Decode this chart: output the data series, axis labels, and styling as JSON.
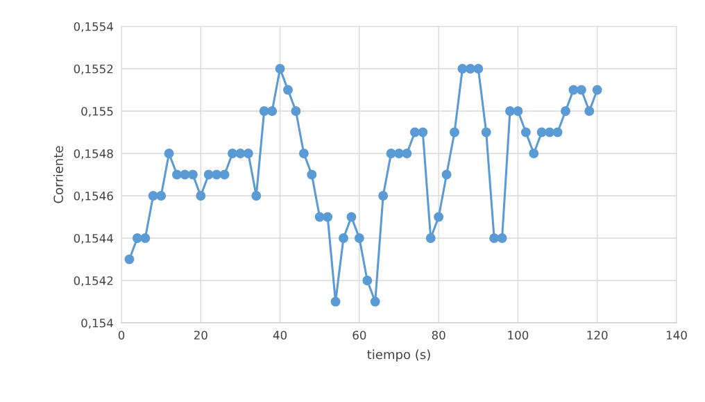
{
  "chart_data": {
    "type": "line",
    "xlabel": "tiempo (s)",
    "ylabel": "Corriente",
    "x": [
      2,
      4,
      6,
      8,
      10,
      12,
      14,
      16,
      18,
      20,
      22,
      24,
      26,
      28,
      30,
      32,
      34,
      36,
      38,
      40,
      42,
      44,
      46,
      48,
      50,
      52,
      54,
      56,
      58,
      60,
      62,
      64,
      66,
      68,
      70,
      72,
      74,
      76,
      78,
      80,
      82,
      84,
      86,
      88,
      90,
      92,
      94,
      96,
      98,
      100,
      102,
      104,
      106,
      108,
      110,
      112,
      114,
      116,
      118,
      120
    ],
    "series": [
      {
        "color": "#5b9bd5",
        "values": [
          0.1543,
          0.1544,
          0.1544,
          0.1546,
          0.1546,
          0.1548,
          0.1547,
          0.1547,
          0.1547,
          0.1546,
          0.1547,
          0.1547,
          0.1547,
          0.1548,
          0.1548,
          0.1548,
          0.1546,
          0.155,
          0.155,
          0.1552,
          0.1551,
          0.155,
          0.1548,
          0.1547,
          0.1545,
          0.1545,
          0.1541,
          0.1544,
          0.1545,
          0.1544,
          0.1542,
          0.1541,
          0.1546,
          0.1548,
          0.1548,
          0.1548,
          0.1549,
          0.1549,
          0.1544,
          0.1545,
          0.1547,
          0.1549,
          0.1552,
          0.1552,
          0.1552,
          0.1549,
          0.1544,
          0.1544,
          0.155,
          0.155,
          0.1549,
          0.1548,
          0.1549,
          0.1549,
          0.1549,
          0.155,
          0.1551,
          0.1551,
          0.155,
          0.1551
        ]
      }
    ],
    "xlim": [
      0,
      140
    ],
    "xticks": [
      0,
      20,
      40,
      60,
      80,
      100,
      120,
      140
    ],
    "ylim": [
      0.154,
      0.1554
    ],
    "yticks": [
      {
        "value": 0.154,
        "label": "0,154"
      },
      {
        "value": 0.1542,
        "label": "0,1542"
      },
      {
        "value": 0.1544,
        "label": "0,1544"
      },
      {
        "value": 0.1546,
        "label": "0,1546"
      },
      {
        "value": 0.1548,
        "label": "0,1548"
      },
      {
        "value": 0.155,
        "label": "0,155"
      },
      {
        "value": 0.1552,
        "label": "0,1552"
      },
      {
        "value": 0.1554,
        "label": "0,1554"
      }
    ],
    "grid": true,
    "marker": "circle",
    "line_style": "solid"
  }
}
